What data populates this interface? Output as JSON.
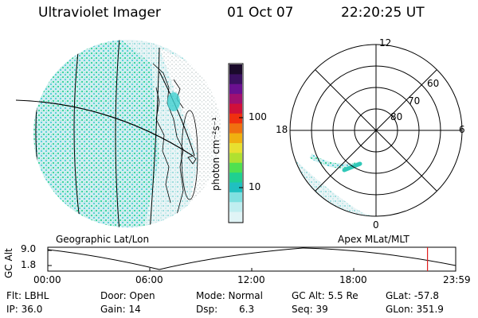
{
  "header": {
    "instrument": "Ultraviolet Imager",
    "date": "01 Oct 07",
    "time": "22:20:25 UT"
  },
  "colorbar": {
    "label": "photon cm⁻²s⁻¹",
    "ticks": [
      "100",
      "10"
    ],
    "colors": [
      "#1a0a2a",
      "#3a1060",
      "#6a1090",
      "#a01070",
      "#d0103a",
      "#f03010",
      "#f07010",
      "#f0b010",
      "#e8e030",
      "#b0e030",
      "#50e050",
      "#20d090",
      "#20c0c0",
      "#80e0e0",
      "#c0eef0",
      "#e0f4f6"
    ]
  },
  "polar_plot": {
    "ring_labels": [
      "80",
      "70",
      "60"
    ],
    "mlt_labels": [
      "12",
      "18",
      "6",
      "0"
    ]
  },
  "projection_labels": {
    "left": "Geographic Lat/Lon",
    "right": "Apex MLat/MLT"
  },
  "altitude_plot": {
    "ylabel": "GC Alt",
    "yticks": [
      "9.0",
      "1.8"
    ],
    "xticks": [
      "00:00",
      "06:00",
      "12:00",
      "18:00",
      "23:59"
    ],
    "current_time_marker_hours": 22.34,
    "marker_color": "#e02020"
  },
  "status": {
    "filter": "Flt: LBHL",
    "ip": "IP: 36.0",
    "door": "Door: Open",
    "gain": "Gain: 14",
    "mode": "Mode: Normal",
    "dsp_label": "Dsp:",
    "dsp_value": "6.3",
    "gc_alt": "GC Alt: 5.5 Re",
    "seq": "Seq: 39",
    "glat": "GLat: -57.8",
    "glon": "GLon: 351.9"
  }
}
